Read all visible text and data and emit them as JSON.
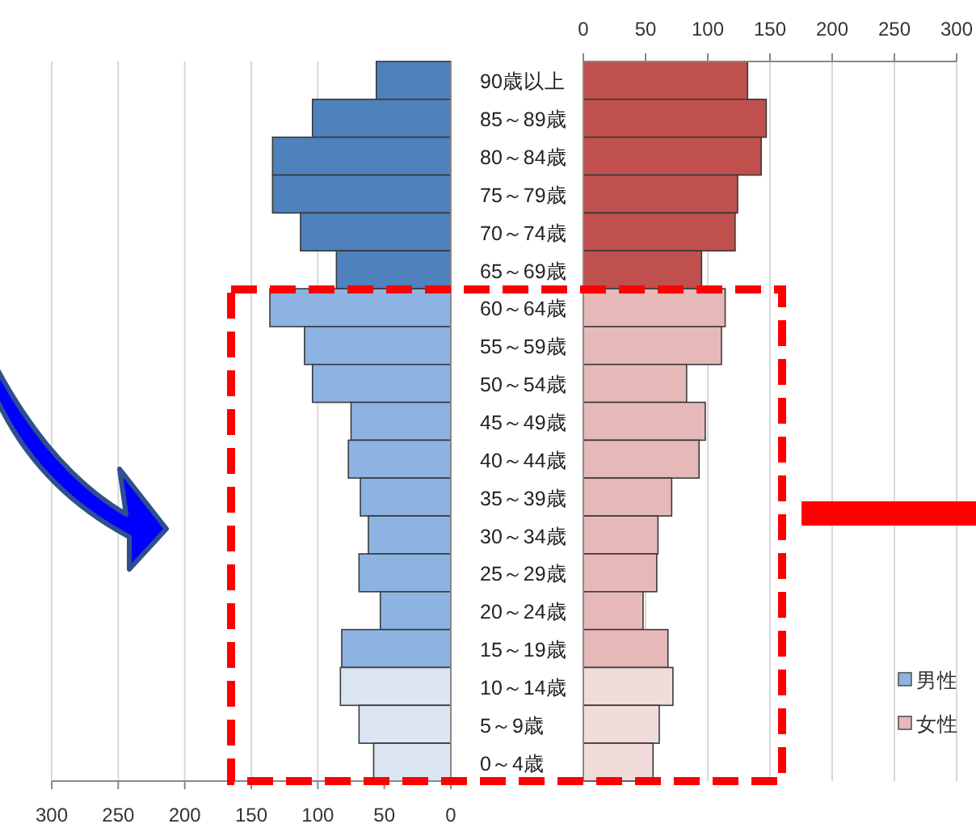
{
  "chart_data": [
    {
      "type": "bar",
      "orientation": "horizontal",
      "categories": [
        "90歳以上",
        "85～89歳",
        "80～84歳",
        "75～79歳",
        "70～74歳",
        "65～69歳",
        "60～64歳",
        "55～59歳",
        "50～54歳",
        "45～49歳",
        "40～44歳",
        "35～39歳",
        "30～34歳",
        "25～29歳",
        "20～24歳",
        "15～19歳",
        "10～14歳",
        "5～9歳",
        "0～4歳"
      ],
      "series": [
        {
          "name": "男性",
          "color": "#8db3e2",
          "colors": [
            "#4f81bd",
            "#4f81bd",
            "#4f81bd",
            "#4f81bd",
            "#4f81bd",
            "#4f81bd",
            "#8db3e2",
            "#8db3e2",
            "#8db3e2",
            "#8db3e2",
            "#8db3e2",
            "#8db3e2",
            "#8db3e2",
            "#8db3e2",
            "#8db3e2",
            "#8db3e2",
            "#dce6f2",
            "#dce6f2",
            "#dce6f2"
          ],
          "values": [
            56,
            104,
            134,
            134,
            113,
            86,
            136,
            110,
            104,
            75,
            77,
            68,
            62,
            69,
            53,
            82,
            83,
            69,
            58
          ]
        }
      ],
      "xlim": [
        300,
        0
      ],
      "xticks": [
        300,
        250,
        200,
        150,
        100,
        50,
        0
      ],
      "grid": "x",
      "legend": "right"
    },
    {
      "type": "bar",
      "orientation": "horizontal",
      "series": [
        {
          "name": "女性",
          "color": "#e6b9b8",
          "colors": [
            "#c0504d",
            "#c0504d",
            "#c0504d",
            "#c0504d",
            "#c0504d",
            "#c0504d",
            "#e6b9b8",
            "#e6b9b8",
            "#e6b9b8",
            "#e6b9b8",
            "#e6b9b8",
            "#e6b9b8",
            "#e6b9b8",
            "#e6b9b8",
            "#e6b9b8",
            "#e6b9b8",
            "#f2dcdb",
            "#f2dcdb",
            "#f2dcdb"
          ],
          "values": [
            132,
            147,
            143,
            124,
            122,
            95,
            114,
            111,
            83,
            98,
            93,
            71,
            60,
            59,
            48,
            68,
            72,
            61,
            56
          ]
        }
      ],
      "xlim": [
        0,
        300
      ],
      "xticks": [
        0,
        50,
        100,
        150,
        200,
        250,
        300
      ],
      "grid": "x",
      "tick_labels": "x",
      "legend": "right"
    }
  ]
}
